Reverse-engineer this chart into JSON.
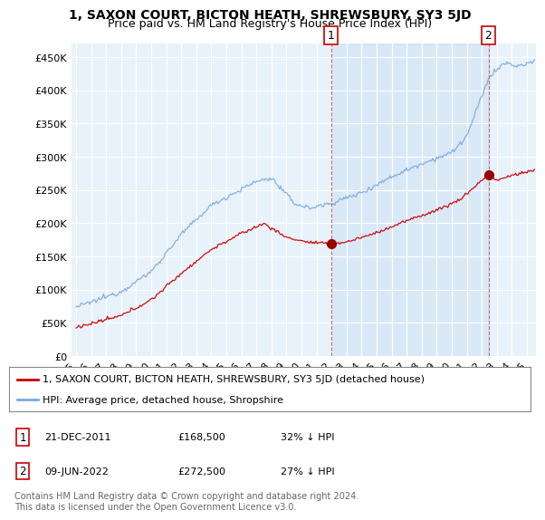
{
  "title": "1, SAXON COURT, BICTON HEATH, SHREWSBURY, SY3 5JD",
  "subtitle": "Price paid vs. HM Land Registry's House Price Index (HPI)",
  "ylabel_ticks": [
    "£0",
    "£50K",
    "£100K",
    "£150K",
    "£200K",
    "£250K",
    "£300K",
    "£350K",
    "£400K",
    "£450K"
  ],
  "ytick_values": [
    0,
    50000,
    100000,
    150000,
    200000,
    250000,
    300000,
    350000,
    400000,
    450000
  ],
  "ylim": [
    0,
    470000
  ],
  "xlim_start": 1994.7,
  "xlim_end": 2025.6,
  "background_color": "#ffffff",
  "plot_bg_color": "#dce8f5",
  "plot_bg_color2": "#e8f2fa",
  "grid_color": "#ffffff",
  "red_line_color": "#cc0000",
  "blue_line_color": "#7aaadd",
  "sale1_x": 2011.97,
  "sale1_y": 168500,
  "sale2_x": 2022.44,
  "sale2_y": 272500,
  "marker_color": "#990000",
  "vline_color": "#cc4444",
  "legend_label1": "1, SAXON COURT, BICTON HEATH, SHREWSBURY, SY3 5JD (detached house)",
  "legend_label2": "HPI: Average price, detached house, Shropshire",
  "table_row1": [
    "1",
    "21-DEC-2011",
    "£168,500",
    "32% ↓ HPI"
  ],
  "table_row2": [
    "2",
    "09-JUN-2022",
    "£272,500",
    "27% ↓ HPI"
  ],
  "footer": "Contains HM Land Registry data © Crown copyright and database right 2024.\nThis data is licensed under the Open Government Licence v3.0.",
  "title_fontsize": 10,
  "subtitle_fontsize": 9,
  "tick_fontsize": 8,
  "legend_fontsize": 8,
  "table_fontsize": 8,
  "footer_fontsize": 7
}
